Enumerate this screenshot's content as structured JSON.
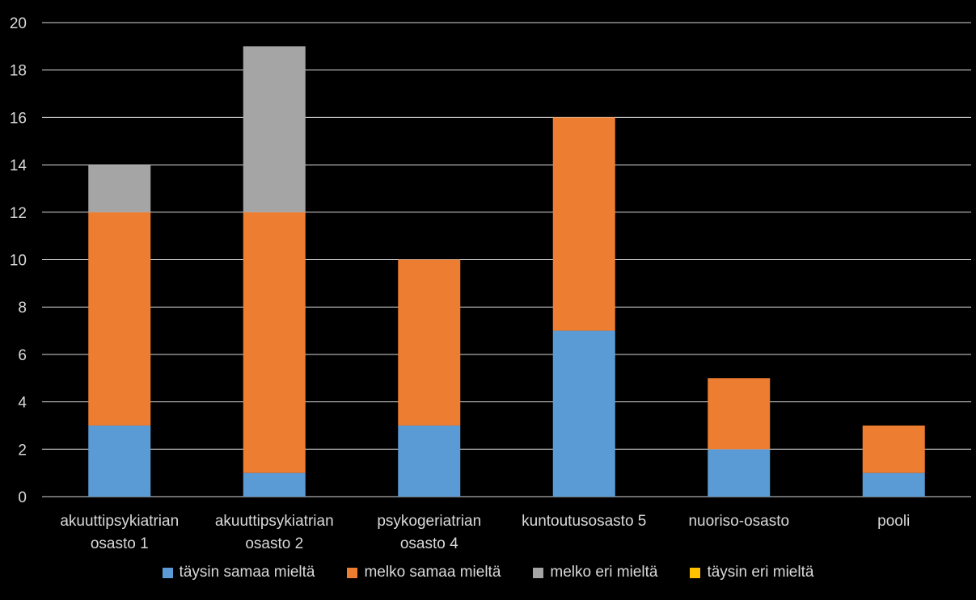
{
  "chart_data": {
    "type": "bar",
    "stacked": true,
    "title": "",
    "xlabel": "",
    "ylabel": "",
    "ylim": [
      0,
      20
    ],
    "ytick_step": 2,
    "yticks": [
      "0",
      "2",
      "4",
      "6",
      "8",
      "10",
      "12",
      "14",
      "16",
      "18",
      "20"
    ],
    "grid": true,
    "legend_position": "bottom",
    "categories": [
      [
        "akuuttipsykiatrian",
        "osasto 1"
      ],
      [
        "akuuttipsykiatrian",
        "osasto 2"
      ],
      [
        "psykogeriatrian",
        "osasto 4"
      ],
      [
        "kuntoutusosasto 5"
      ],
      [
        "nuoriso-osasto"
      ],
      [
        "pooli"
      ]
    ],
    "series": [
      {
        "name": "täysin samaa mieltä",
        "color": "#5b9bd5",
        "values": [
          3,
          1,
          3,
          7,
          2,
          1
        ]
      },
      {
        "name": "melko samaa mieltä",
        "color": "#ed7d31",
        "values": [
          9,
          11,
          7,
          9,
          3,
          2
        ]
      },
      {
        "name": "melko eri mieltä",
        "color": "#a5a5a5",
        "values": [
          2,
          7,
          0,
          0,
          0,
          0
        ]
      },
      {
        "name": "täysin eri mieltä",
        "color": "#ffc000",
        "values": [
          0,
          0,
          0,
          0,
          0,
          0
        ]
      }
    ]
  },
  "colors": {
    "background": "#000000",
    "gridline": "#d9d9d9",
    "text": "#d9d9d9"
  }
}
